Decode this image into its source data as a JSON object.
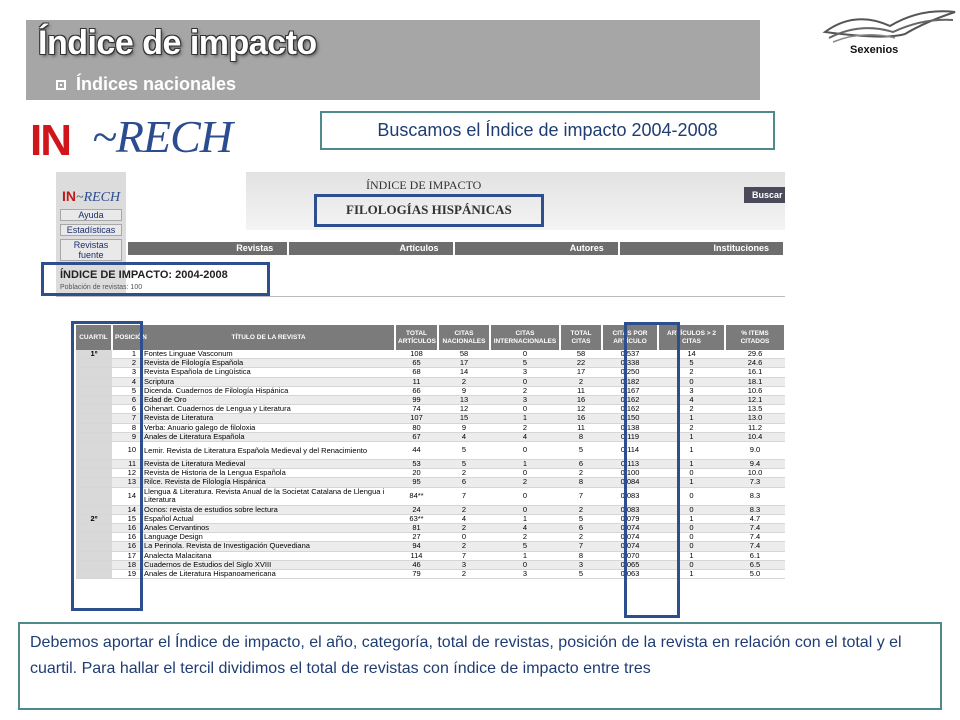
{
  "header": {
    "title": "Índice de impacto",
    "subtitle": "Índices nacionales",
    "brand_label": "Sexenios"
  },
  "logo": {
    "part_in": "IN",
    "part_rech": "~RECH"
  },
  "callout_top": "Buscamos el Índice de impacto 2004-2008",
  "screenshot": {
    "mini_logo_in": "IN",
    "mini_logo_rech": "~RECH",
    "sidebar": [
      "Ayuda",
      "Estadísticas",
      "Revistas fuente"
    ],
    "page_heading": "ÍNDICE DE IMPACTO",
    "page_subheading": "FILOLOGÍAS HISPÁNICAS",
    "search_button": "Buscar",
    "menu": [
      "Revistas",
      "Artículos",
      "Autores",
      "Instituciones"
    ],
    "index_title": "ÍNDICE DE IMPACTO: 2004-2008",
    "index_population": "Población de revistas: 100"
  },
  "table": {
    "headers": [
      "Cuartil",
      "Posición",
      "Título de la revista",
      "Total Artículos",
      "Citas Nacionales",
      "Citas Internacionales",
      "Total Citas",
      "Citas por Artículo",
      "Artículos > 2 citas",
      "% items citados"
    ],
    "rows": [
      {
        "cuartil": "1º",
        "pos": "1",
        "title": "Fontes Linguae Vasconum",
        "art": "108",
        "nac": "58",
        "int": "0",
        "tot": "58",
        "cpa": "0.537",
        "a2": "14",
        "pct": "29.6"
      },
      {
        "cuartil": "",
        "pos": "2",
        "title": "Revista de Filología Española",
        "art": "65",
        "nac": "17",
        "int": "5",
        "tot": "22",
        "cpa": "0.338",
        "a2": "5",
        "pct": "24.6"
      },
      {
        "cuartil": "",
        "pos": "3",
        "title": "Revista Española de Lingüística",
        "art": "68",
        "nac": "14",
        "int": "3",
        "tot": "17",
        "cpa": "0.250",
        "a2": "2",
        "pct": "16.1"
      },
      {
        "cuartil": "",
        "pos": "4",
        "title": "Scriptura",
        "art": "11",
        "nac": "2",
        "int": "0",
        "tot": "2",
        "cpa": "0.182",
        "a2": "0",
        "pct": "18.1"
      },
      {
        "cuartil": "",
        "pos": "5",
        "title": "Dicenda. Cuadernos de Filología Hispánica",
        "art": "66",
        "nac": "9",
        "int": "2",
        "tot": "11",
        "cpa": "0.167",
        "a2": "3",
        "pct": "10.6"
      },
      {
        "cuartil": "",
        "pos": "6",
        "title": "Edad de Oro",
        "art": "99",
        "nac": "13",
        "int": "3",
        "tot": "16",
        "cpa": "0.162",
        "a2": "4",
        "pct": "12.1"
      },
      {
        "cuartil": "",
        "pos": "6",
        "title": "Oihenart. Cuadernos de Lengua y Literatura",
        "art": "74",
        "nac": "12",
        "int": "0",
        "tot": "12",
        "cpa": "0.162",
        "a2": "2",
        "pct": "13.5"
      },
      {
        "cuartil": "",
        "pos": "7",
        "title": "Revista de Literatura",
        "art": "107",
        "nac": "15",
        "int": "1",
        "tot": "16",
        "cpa": "0.150",
        "a2": "1",
        "pct": "13.0"
      },
      {
        "cuartil": "",
        "pos": "8",
        "title": "Verba: Anuario galego de filoloxia",
        "art": "80",
        "nac": "9",
        "int": "2",
        "tot": "11",
        "cpa": "0.138",
        "a2": "2",
        "pct": "11.2"
      },
      {
        "cuartil": "",
        "pos": "9",
        "title": "Anales de Literatura Española",
        "art": "67",
        "nac": "4",
        "int": "4",
        "tot": "8",
        "cpa": "0.119",
        "a2": "1",
        "pct": "10.4"
      },
      {
        "cuartil": "",
        "pos": "10",
        "title": "Lemir. Revista de Literatura Española Medieval y del Renacimiento",
        "art": "44",
        "nac": "5",
        "int": "0",
        "tot": "5",
        "cpa": "0.114",
        "a2": "1",
        "pct": "9.0",
        "tall": true
      },
      {
        "cuartil": "",
        "pos": "11",
        "title": "Revista de Literatura Medieval",
        "art": "53",
        "nac": "5",
        "int": "1",
        "tot": "6",
        "cpa": "0.113",
        "a2": "1",
        "pct": "9.4"
      },
      {
        "cuartil": "",
        "pos": "12",
        "title": "Revista de Historia de la Lengua Española",
        "art": "20",
        "nac": "2",
        "int": "0",
        "tot": "2",
        "cpa": "0.100",
        "a2": "0",
        "pct": "10.0"
      },
      {
        "cuartil": "",
        "pos": "13",
        "title": "Rilce. Revista de Filología Hispánica",
        "art": "95",
        "nac": "6",
        "int": "2",
        "tot": "8",
        "cpa": "0.084",
        "a2": "1",
        "pct": "7.3"
      },
      {
        "cuartil": "",
        "pos": "14",
        "title": "Llengua & Literatura. Revista Anual de la Societat Catalana de Llengua i Literatura",
        "art": "84**",
        "nac": "7",
        "int": "0",
        "tot": "7",
        "cpa": "0.083",
        "a2": "0",
        "pct": "8.3",
        "tall": true
      },
      {
        "cuartil": "",
        "pos": "14",
        "title": "Ocnos: revista de estudios sobre lectura",
        "art": "24",
        "nac": "2",
        "int": "0",
        "tot": "2",
        "cpa": "0.083",
        "a2": "0",
        "pct": "8.3"
      },
      {
        "cuartil": "2º",
        "pos": "15",
        "title": "Español Actual",
        "art": "63**",
        "nac": "4",
        "int": "1",
        "tot": "5",
        "cpa": "0.079",
        "a2": "1",
        "pct": "4.7"
      },
      {
        "cuartil": "",
        "pos": "16",
        "title": "Anales Cervantinos",
        "art": "81",
        "nac": "2",
        "int": "4",
        "tot": "6",
        "cpa": "0.074",
        "a2": "0",
        "pct": "7.4"
      },
      {
        "cuartil": "",
        "pos": "16",
        "title": "Language Design",
        "art": "27",
        "nac": "0",
        "int": "2",
        "tot": "2",
        "cpa": "0.074",
        "a2": "0",
        "pct": "7.4"
      },
      {
        "cuartil": "",
        "pos": "16",
        "title": "La Perinola. Revista de Investigación Quevediana",
        "art": "94",
        "nac": "2",
        "int": "5",
        "tot": "7",
        "cpa": "0.074",
        "a2": "0",
        "pct": "7.4"
      },
      {
        "cuartil": "",
        "pos": "17",
        "title": "Analecta Malacitana",
        "art": "114",
        "nac": "7",
        "int": "1",
        "tot": "8",
        "cpa": "0.070",
        "a2": "1",
        "pct": "6.1"
      },
      {
        "cuartil": "",
        "pos": "18",
        "title": "Cuadernos de Estudios del Siglo XVIII",
        "art": "46",
        "nac": "3",
        "int": "0",
        "tot": "3",
        "cpa": "0.065",
        "a2": "0",
        "pct": "6.5"
      },
      {
        "cuartil": "",
        "pos": "19",
        "title": "Anales de Literatura Hispanoamericana",
        "art": "79",
        "nac": "2",
        "int": "3",
        "tot": "5",
        "cpa": "0.063",
        "a2": "1",
        "pct": "5.0"
      }
    ]
  },
  "callout_bottom": "Debemos aportar el Índice de impacto, el año, categoría, total de revistas, posición de la revista en relación con el total y el cuartil. Para hallar el tercil dividimos el total de revistas con índice de impacto entre tres",
  "colors": {
    "banner": "#a6a6a6",
    "callout_border": "#4f8a8b",
    "highlight_box": "#2d4f8e",
    "logo_red": "#d0161b",
    "logo_blue": "#2b4d8f"
  }
}
